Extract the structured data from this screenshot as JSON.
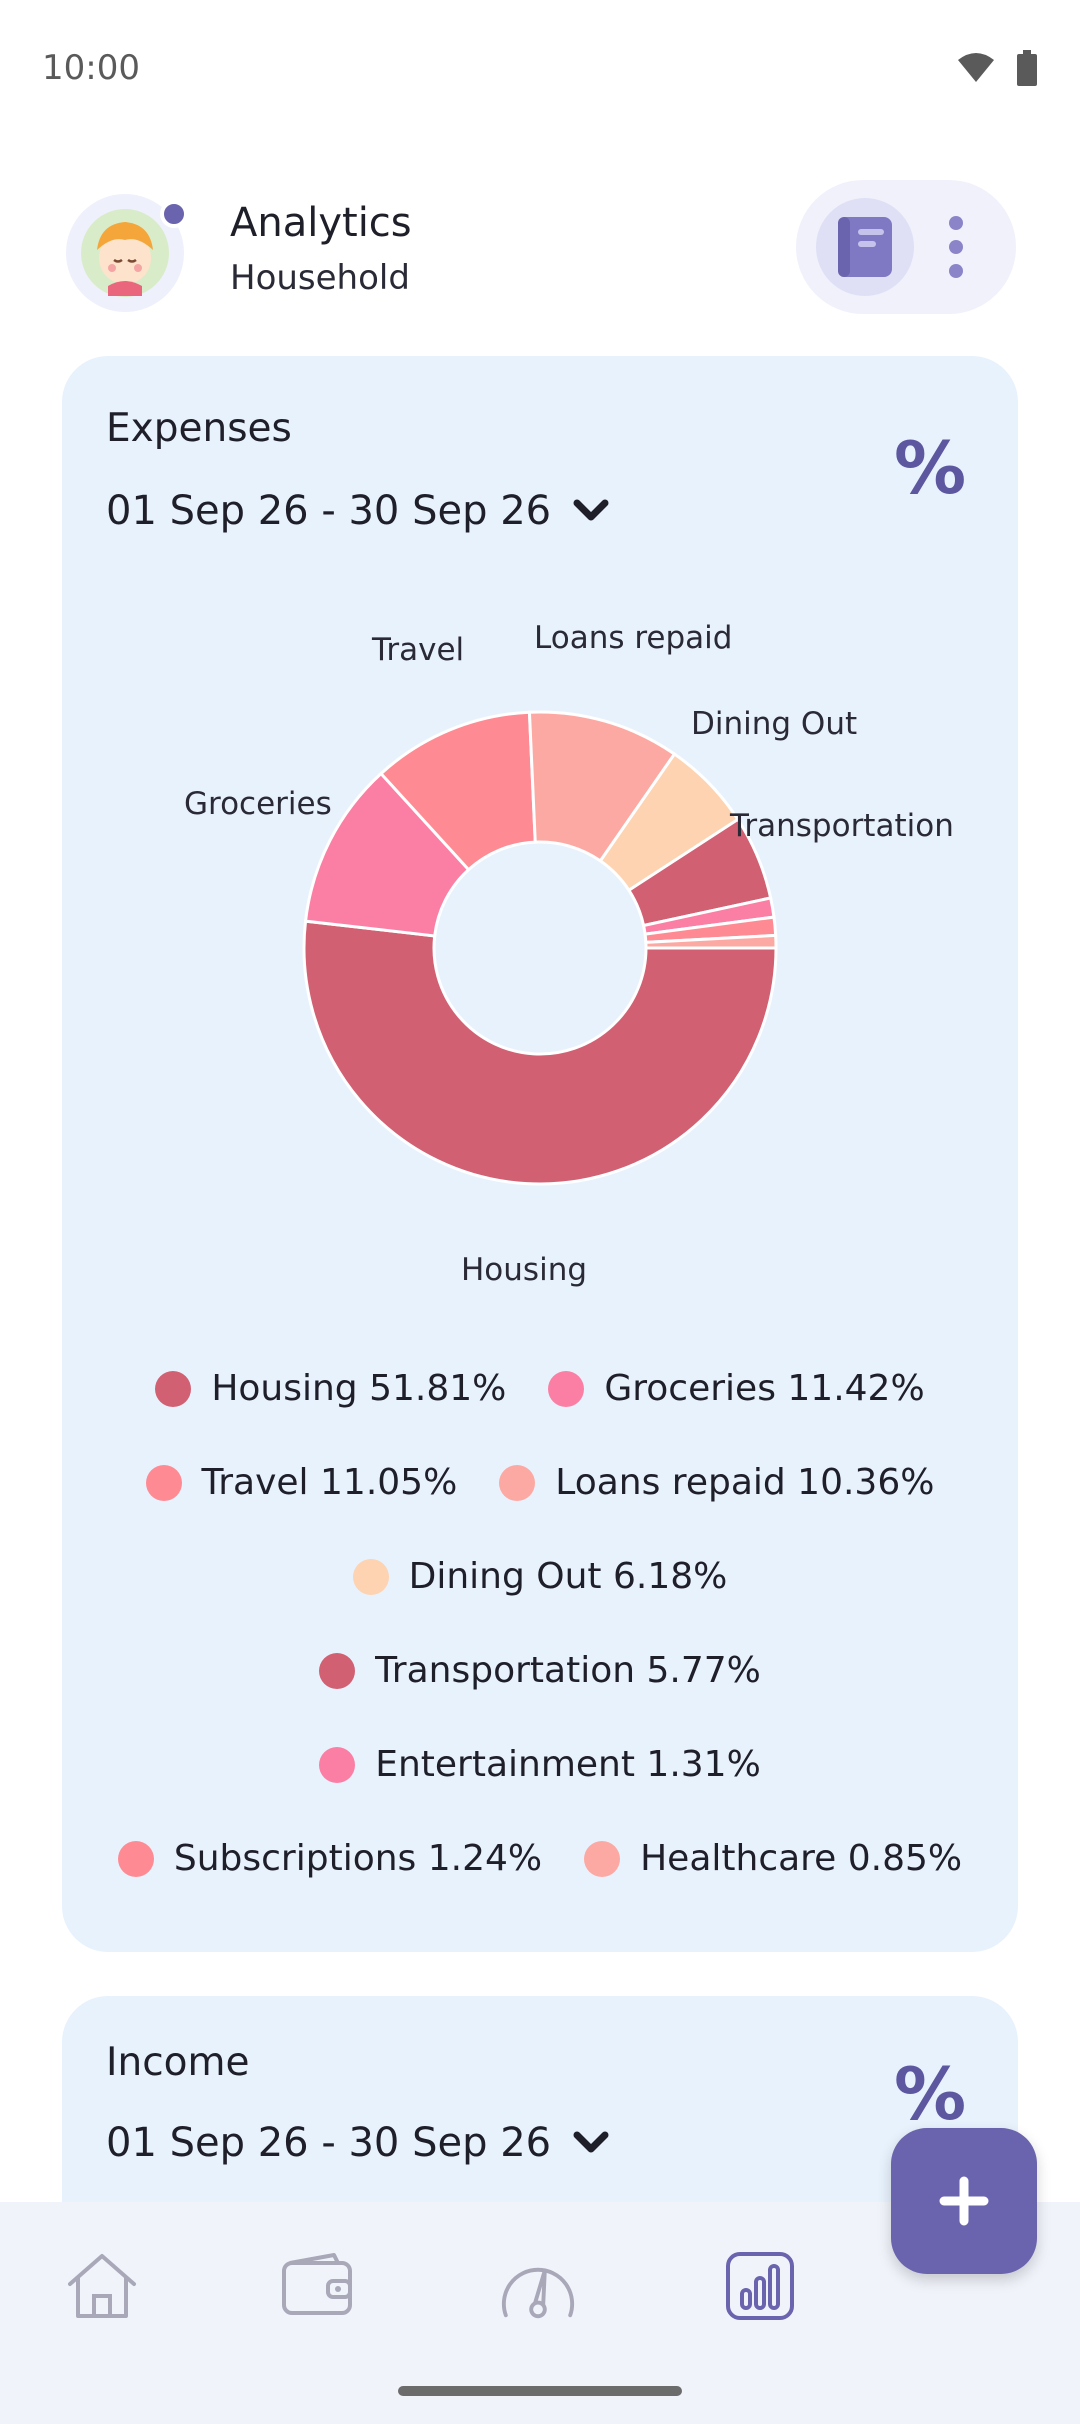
{
  "status_bar": {
    "time": "10:00"
  },
  "header": {
    "title": "Analytics",
    "subtitle": "Household"
  },
  "expenses_card": {
    "title": "Expenses",
    "date_range": "01 Sep 26 - 30 Sep 26",
    "percent_symbol": "%"
  },
  "chart_data": {
    "type": "pie",
    "donut": true,
    "series": [
      {
        "name": "Housing",
        "value": 51.81,
        "color": "#d16073",
        "label": "Housing",
        "legend": "Housing 51.81%"
      },
      {
        "name": "Groceries",
        "value": 11.42,
        "color": "#fb7fa4",
        "label": "Groceries",
        "legend": "Groceries 11.42%"
      },
      {
        "name": "Travel",
        "value": 11.05,
        "color": "#fe8b93",
        "label": "Travel",
        "legend": "Travel 11.05%"
      },
      {
        "name": "Loans repaid",
        "value": 10.36,
        "color": "#fda9a3",
        "label": "Loans repaid",
        "legend": "Loans repaid 10.36%"
      },
      {
        "name": "Dining Out",
        "value": 6.18,
        "color": "#fdd3b1",
        "label": "Dining Out",
        "legend": "Dining Out 6.18%"
      },
      {
        "name": "Transportation",
        "value": 5.77,
        "color": "#d16073",
        "label": "Transportation",
        "legend": "Transportation 5.77%"
      },
      {
        "name": "Entertainment",
        "value": 1.31,
        "color": "#fb7fa4",
        "label": "",
        "legend": "Entertainment 1.31%"
      },
      {
        "name": "Subscriptions",
        "value": 1.24,
        "color": "#fe8b93",
        "label": "",
        "legend": "Subscriptions 1.24%"
      },
      {
        "name": "Healthcare",
        "value": 0.85,
        "color": "#fda9a3",
        "label": "",
        "legend": "Healthcare 0.85%"
      }
    ]
  },
  "income_card": {
    "title": "Income",
    "date_range": "01 Sep 26 - 30 Sep 26",
    "percent_symbol": "%"
  },
  "bottom_nav": {
    "items": [
      {
        "icon": "home-icon"
      },
      {
        "icon": "wallet-icon"
      },
      {
        "icon": "gauge-icon"
      },
      {
        "icon": "bar-chart-icon",
        "active": true
      }
    ]
  },
  "fab": {
    "icon": "plus-icon"
  },
  "colors": {
    "accent": "#6a63ad",
    "card_bg": "#e8f2fd",
    "nav_bg": "#f1f3fb"
  }
}
